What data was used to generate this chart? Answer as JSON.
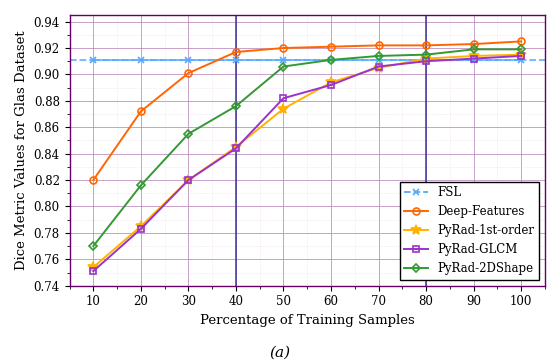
{
  "x": [
    10,
    20,
    30,
    40,
    50,
    60,
    70,
    80,
    90,
    100
  ],
  "FSL": {
    "y": [
      0.911,
      0.911,
      0.911,
      0.911,
      0.911,
      0.911,
      0.911,
      0.911,
      0.911,
      0.911
    ],
    "color": "#55AAFF",
    "marker": "x",
    "linestyle": "--",
    "label": "FSL",
    "linewidth": 1.3
  },
  "Deep-Features": {
    "y": [
      0.82,
      0.872,
      0.901,
      0.917,
      0.92,
      0.921,
      0.922,
      0.922,
      0.923,
      0.925
    ],
    "color": "#FF6600",
    "marker": "o",
    "linestyle": "-",
    "label": "Deep-Features",
    "linewidth": 1.4
  },
  "PyRad-1st-order": {
    "y": [
      0.754,
      0.785,
      0.82,
      0.845,
      0.874,
      0.894,
      0.905,
      0.912,
      0.914,
      0.915
    ],
    "color": "#FFB300",
    "marker": "*",
    "linestyle": "-",
    "label": "PyRad-1st-order",
    "linewidth": 1.4
  },
  "PyRad-GLCM": {
    "y": [
      0.751,
      0.783,
      0.82,
      0.844,
      0.882,
      0.892,
      0.906,
      0.91,
      0.912,
      0.914
    ],
    "color": "#9933CC",
    "marker": "s",
    "linestyle": "-",
    "label": "PyRad-GLCM",
    "linewidth": 1.4
  },
  "PyRad-2DShape": {
    "y": [
      0.77,
      0.816,
      0.855,
      0.876,
      0.906,
      0.911,
      0.914,
      0.915,
      0.919,
      0.919
    ],
    "color": "#339933",
    "marker": "D",
    "linestyle": "-",
    "label": "PyRad-2DShape",
    "linewidth": 1.4
  },
  "xlabel": "Percentage of Training Samples",
  "ylabel": "Dice Metric Values for Glas Dataset",
  "ylim": [
    0.74,
    0.945
  ],
  "xlim": [
    5,
    105
  ],
  "yticks": [
    0.74,
    0.76,
    0.78,
    0.8,
    0.82,
    0.84,
    0.86,
    0.88,
    0.9,
    0.92,
    0.94
  ],
  "xticks": [
    10,
    20,
    30,
    40,
    50,
    60,
    70,
    80,
    90,
    100
  ],
  "vlines": [
    40,
    80
  ],
  "vline_color": "#333399",
  "hline_y": 0.911,
  "hline_color": "#55AAFF",
  "caption": "(a)",
  "bg_color": "#FFFFFF",
  "grid_major_color": "#BB88BB",
  "grid_minor_color": "#DDBBDD",
  "spine_color": "#660066",
  "tick_color": "#000000",
  "legend_fontsize": 8.5,
  "axis_fontsize": 9.5,
  "tick_fontsize": 8.5
}
